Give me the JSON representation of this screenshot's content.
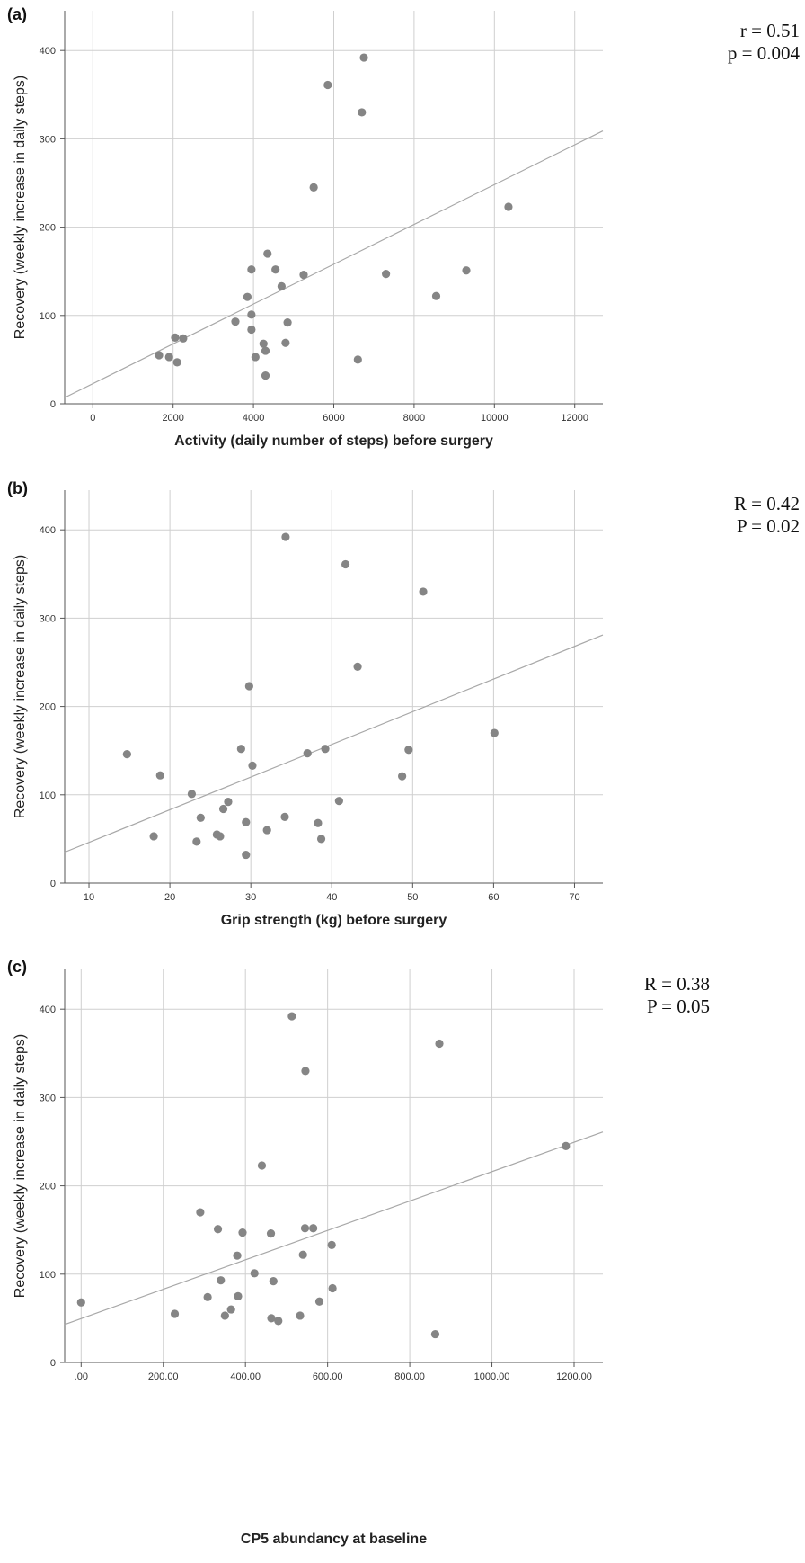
{
  "chart_data": [
    {
      "type": "scatter",
      "panel_label": "(a)",
      "xlabel": "Activity (daily number of steps) before surgery",
      "ylabel": "Recovery (weekly increase in daily steps)",
      "xlim": [
        -700,
        12700
      ],
      "ylim": [
        0,
        445
      ],
      "xticks": [
        0,
        2000,
        4000,
        6000,
        8000,
        10000,
        12000
      ],
      "xtick_labels": [
        "0",
        "2000",
        "4000",
        "6000",
        "8000",
        "10000",
        "12000"
      ],
      "yticks": [
        0,
        100,
        200,
        300,
        400
      ],
      "ytick_labels": [
        "0",
        "100",
        "200",
        "300",
        "400"
      ],
      "grid": true,
      "stats": [
        "r = 0.51",
        "p = 0.004"
      ],
      "fit_line": {
        "x": [
          -700,
          12700
        ],
        "y": [
          7,
          309
        ]
      },
      "points": [
        {
          "x": 1650,
          "y": 55
        },
        {
          "x": 1900,
          "y": 53
        },
        {
          "x": 2050,
          "y": 75
        },
        {
          "x": 2100,
          "y": 47
        },
        {
          "x": 2250,
          "y": 74
        },
        {
          "x": 3550,
          "y": 93
        },
        {
          "x": 3850,
          "y": 121
        },
        {
          "x": 3950,
          "y": 152
        },
        {
          "x": 3950,
          "y": 101
        },
        {
          "x": 3950,
          "y": 84
        },
        {
          "x": 4050,
          "y": 53
        },
        {
          "x": 4250,
          "y": 68
        },
        {
          "x": 4300,
          "y": 60
        },
        {
          "x": 4300,
          "y": 32
        },
        {
          "x": 4350,
          "y": 170
        },
        {
          "x": 4550,
          "y": 152
        },
        {
          "x": 4700,
          "y": 133
        },
        {
          "x": 4800,
          "y": 69
        },
        {
          "x": 4850,
          "y": 92
        },
        {
          "x": 5250,
          "y": 146
        },
        {
          "x": 5500,
          "y": 245
        },
        {
          "x": 5850,
          "y": 361
        },
        {
          "x": 6600,
          "y": 50
        },
        {
          "x": 6700,
          "y": 330
        },
        {
          "x": 6750,
          "y": 392
        },
        {
          "x": 7300,
          "y": 147
        },
        {
          "x": 8550,
          "y": 122
        },
        {
          "x": 9300,
          "y": 151
        },
        {
          "x": 10350,
          "y": 223
        }
      ]
    },
    {
      "type": "scatter",
      "panel_label": "(b)",
      "xlabel": "Grip strength (kg) before surgery",
      "ylabel": "Recovery (weekly increase in daily steps)",
      "xlim": [
        7,
        73.5
      ],
      "ylim": [
        0,
        445
      ],
      "xticks": [
        10,
        20,
        30,
        40,
        50,
        60,
        70
      ],
      "xtick_labels": [
        "10",
        "20",
        "30",
        "40",
        "50",
        "60",
        "70"
      ],
      "yticks": [
        0,
        100,
        200,
        300,
        400
      ],
      "ytick_labels": [
        "0",
        "100",
        "200",
        "300",
        "400"
      ],
      "grid": true,
      "stats": [
        "R = 0.42",
        "P = 0.02"
      ],
      "fit_line": {
        "x": [
          7,
          73.5
        ],
        "y": [
          35,
          281
        ]
      },
      "points": [
        {
          "x": 14.7,
          "y": 146
        },
        {
          "x": 18.0,
          "y": 53
        },
        {
          "x": 18.8,
          "y": 122
        },
        {
          "x": 22.7,
          "y": 101
        },
        {
          "x": 23.3,
          "y": 47
        },
        {
          "x": 23.8,
          "y": 74
        },
        {
          "x": 25.8,
          "y": 55
        },
        {
          "x": 26.2,
          "y": 53
        },
        {
          "x": 26.6,
          "y": 84
        },
        {
          "x": 27.2,
          "y": 92
        },
        {
          "x": 28.8,
          "y": 152
        },
        {
          "x": 29.4,
          "y": 69
        },
        {
          "x": 29.4,
          "y": 32
        },
        {
          "x": 29.8,
          "y": 223
        },
        {
          "x": 30.2,
          "y": 133
        },
        {
          "x": 32.0,
          "y": 60
        },
        {
          "x": 34.2,
          "y": 75
        },
        {
          "x": 34.3,
          "y": 392
        },
        {
          "x": 37.0,
          "y": 147
        },
        {
          "x": 38.3,
          "y": 68
        },
        {
          "x": 38.7,
          "y": 50
        },
        {
          "x": 39.2,
          "y": 152
        },
        {
          "x": 40.9,
          "y": 93
        },
        {
          "x": 41.7,
          "y": 361
        },
        {
          "x": 43.2,
          "y": 245
        },
        {
          "x": 48.7,
          "y": 121
        },
        {
          "x": 49.5,
          "y": 151
        },
        {
          "x": 51.3,
          "y": 330
        },
        {
          "x": 60.1,
          "y": 170
        }
      ]
    },
    {
      "type": "scatter",
      "panel_label": "(c)",
      "xlabel": "CP5 abundancy at baseline",
      "ylabel": "Recovery (weekly increase in daily steps)",
      "xlim": [
        -40,
        1270
      ],
      "ylim": [
        0,
        445
      ],
      "xticks": [
        0,
        200,
        400,
        600,
        800,
        1000,
        1200
      ],
      "xtick_labels": [
        ".00",
        "200.00",
        "400.00",
        "600.00",
        "800.00",
        "1000.00",
        "1200.00"
      ],
      "yticks": [
        0,
        100,
        200,
        300,
        400
      ],
      "ytick_labels": [
        "0",
        "100",
        "200",
        "300",
        "400"
      ],
      "grid": true,
      "stats": [
        "R = 0.38",
        "P = 0.05"
      ],
      "fit_line": {
        "x": [
          -40,
          1270
        ],
        "y": [
          43,
          261
        ]
      },
      "points": [
        {
          "x": 0,
          "y": 68
        },
        {
          "x": 228,
          "y": 55
        },
        {
          "x": 290,
          "y": 170
        },
        {
          "x": 308,
          "y": 74
        },
        {
          "x": 333,
          "y": 151
        },
        {
          "x": 340,
          "y": 93
        },
        {
          "x": 350,
          "y": 53
        },
        {
          "x": 365,
          "y": 60
        },
        {
          "x": 380,
          "y": 121
        },
        {
          "x": 382,
          "y": 75
        },
        {
          "x": 393,
          "y": 147
        },
        {
          "x": 422,
          "y": 101
        },
        {
          "x": 440,
          "y": 223
        },
        {
          "x": 462,
          "y": 146
        },
        {
          "x": 463,
          "y": 50
        },
        {
          "x": 468,
          "y": 92
        },
        {
          "x": 480,
          "y": 47
        },
        {
          "x": 513,
          "y": 392
        },
        {
          "x": 533,
          "y": 53
        },
        {
          "x": 540,
          "y": 122
        },
        {
          "x": 545,
          "y": 152
        },
        {
          "x": 546,
          "y": 330
        },
        {
          "x": 565,
          "y": 152
        },
        {
          "x": 580,
          "y": 69
        },
        {
          "x": 610,
          "y": 133
        },
        {
          "x": 612,
          "y": 84
        },
        {
          "x": 862,
          "y": 32
        },
        {
          "x": 872,
          "y": 361
        },
        {
          "x": 1180,
          "y": 245
        }
      ]
    }
  ]
}
